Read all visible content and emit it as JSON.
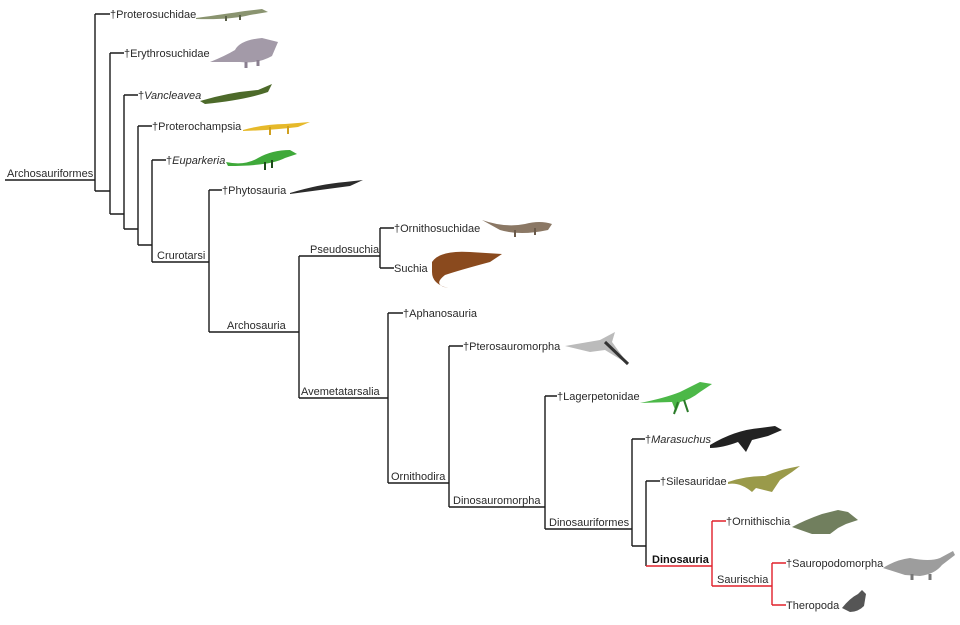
{
  "clades": {
    "archosauriformes": "Archosauriformes",
    "crurotarsi": "Crurotarsi",
    "archosauria": "Archosauria",
    "pseudosuchia": "Pseudosuchia",
    "avemetatarsalia": "Avemetatarsalia",
    "ornithodira": "Ornithodira",
    "dinosauromorpha": "Dinosauromorpha",
    "dinosauriformes": "Dinosauriformes",
    "dinosauria": "Dinosauria",
    "saurischia": "Saurischia"
  },
  "taxa": {
    "proterosuchidae": "†Proterosuchidae",
    "erythrosuchidae": "†Erythrosuchidae",
    "vancleavea_dagger": "†",
    "vancleavea": "Vancleavea",
    "proterochampsia": "†Proterochampsia",
    "euparkeria_dagger": "†",
    "euparkeria": "Euparkeria",
    "phytosauria": "†Phytosauria",
    "ornithosuchidae": "†Ornithosuchidae",
    "suchia": "Suchia",
    "aphanosauria": "†Aphanosauria",
    "pterosauromorpha": "†Pterosauromorpha",
    "lagerpetonidae": "†Lagerpetonidae",
    "marasuchus_dagger": "†",
    "marasuchus": "Marasuchus",
    "silesauridae": "†Silesauridae",
    "ornithischia": "†Ornithischia",
    "sauropodomorpha": "†Sauropodomorpha",
    "theropoda": "Theropoda"
  },
  "colors": {
    "branch": "#1a1a1a",
    "dinosauria_branch": "#e0202a"
  }
}
